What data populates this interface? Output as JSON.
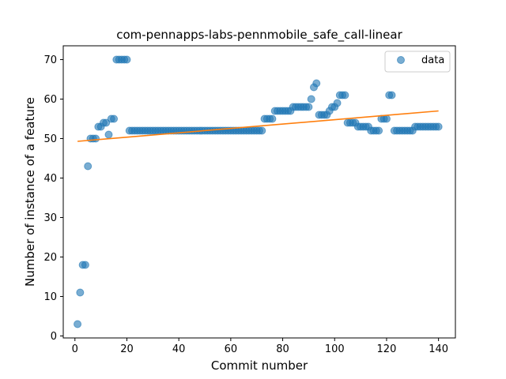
{
  "chart_data": {
    "type": "scatter",
    "title": "com-pennapps-labs-pennmobile_safe_call-linear",
    "xlabel": "Commit number",
    "ylabel": "Number of instance of a feature",
    "xlim": [
      -4.5,
      146.5
    ],
    "ylim": [
      -0.5,
      73.5
    ],
    "xticks": [
      0,
      20,
      40,
      60,
      80,
      100,
      120,
      140
    ],
    "yticks": [
      0,
      10,
      20,
      30,
      40,
      50,
      60,
      70
    ],
    "grid": false,
    "legend_position": "top-right",
    "series": [
      {
        "name": "data",
        "kind": "points",
        "color": "#1f77b4",
        "x": [
          1,
          2,
          3,
          4,
          5,
          6,
          7,
          8,
          9,
          10,
          11,
          12,
          13,
          14,
          15,
          16,
          17,
          18,
          19,
          20,
          21,
          22,
          23,
          24,
          25,
          26,
          27,
          28,
          29,
          30,
          31,
          32,
          33,
          34,
          35,
          36,
          37,
          38,
          39,
          40,
          41,
          42,
          43,
          44,
          45,
          46,
          47,
          48,
          49,
          50,
          51,
          52,
          53,
          54,
          55,
          56,
          57,
          58,
          59,
          60,
          61,
          62,
          63,
          64,
          65,
          66,
          67,
          68,
          69,
          70,
          71,
          72,
          73,
          74,
          75,
          76,
          77,
          78,
          79,
          80,
          81,
          82,
          83,
          84,
          85,
          86,
          87,
          88,
          89,
          90,
          91,
          92,
          93,
          94,
          95,
          96,
          97,
          98,
          99,
          100,
          101,
          102,
          103,
          104,
          105,
          106,
          107,
          108,
          109,
          110,
          111,
          112,
          113,
          114,
          115,
          116,
          117,
          118,
          119,
          120,
          121,
          122,
          123,
          124,
          125,
          126,
          127,
          128,
          129,
          130,
          131,
          132,
          133,
          134,
          135,
          136,
          137,
          138,
          139,
          140
        ],
        "y": [
          3,
          11,
          18,
          18,
          43,
          50,
          50,
          50,
          53,
          53,
          54,
          54,
          51,
          55,
          55,
          70,
          70,
          70,
          70,
          70,
          52,
          52,
          52,
          52,
          52,
          52,
          52,
          52,
          52,
          52,
          52,
          52,
          52,
          52,
          52,
          52,
          52,
          52,
          52,
          52,
          52,
          52,
          52,
          52,
          52,
          52,
          52,
          52,
          52,
          52,
          52,
          52,
          52,
          52,
          52,
          52,
          52,
          52,
          52,
          52,
          52,
          52,
          52,
          52,
          52,
          52,
          52,
          52,
          52,
          52,
          52,
          52,
          55,
          55,
          55,
          55,
          57,
          57,
          57,
          57,
          57,
          57,
          57,
          58,
          58,
          58,
          58,
          58,
          58,
          58,
          60,
          63,
          64,
          56,
          56,
          56,
          56,
          57,
          58,
          58,
          59,
          61,
          61,
          61,
          54,
          54,
          54,
          54,
          53,
          53,
          53,
          53,
          53,
          52,
          52,
          52,
          52,
          55,
          55,
          55,
          61,
          61,
          52,
          52,
          52,
          52,
          52,
          52,
          52,
          52,
          53,
          53,
          53,
          53,
          53,
          53,
          53,
          53,
          53,
          53
        ]
      },
      {
        "kind": "fit-line",
        "color": "#ff7f0e",
        "x": [
          1,
          140
        ],
        "y": [
          49.3,
          57.0
        ]
      }
    ]
  }
}
